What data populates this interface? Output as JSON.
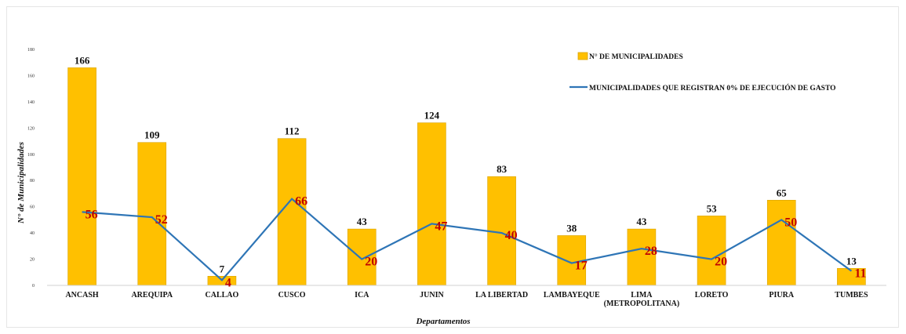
{
  "colors": {
    "bar": "#ffc000",
    "bar_edge": "#d9a300",
    "line": "#2e75b6",
    "line_label": "#c00000"
  },
  "chart_data": {
    "type": "bar",
    "categories": [
      "ANCASH",
      "AREQUIPA",
      "CALLAO",
      "CUSCO",
      "ICA",
      "JUNIN",
      "LA LIBERTAD",
      "LAMBAYEQUE",
      "LIMA (METROPOLITANA)",
      "LORETO",
      "PIURA",
      "TUMBES"
    ],
    "series": [
      {
        "name": "N° DE MUNICIPALIDADES",
        "type": "bar",
        "values": [
          166,
          109,
          7,
          112,
          43,
          124,
          83,
          38,
          43,
          53,
          65,
          13
        ]
      },
      {
        "name": "MUNICIPALIDADES QUE REGISTRAN 0% DE EJECUCIÓN DE GASTO",
        "type": "line",
        "values": [
          56,
          52,
          4,
          66,
          20,
          47,
          40,
          17,
          28,
          20,
          50,
          11
        ]
      }
    ],
    "xlabel": "Departamentos",
    "ylabel": "N° de Municipalidades",
    "ylim": [
      0,
      180
    ],
    "yticks": [
      0,
      20,
      40,
      60,
      80,
      100,
      120,
      140,
      160,
      180
    ],
    "grid": false,
    "legend_position": "top-right"
  }
}
